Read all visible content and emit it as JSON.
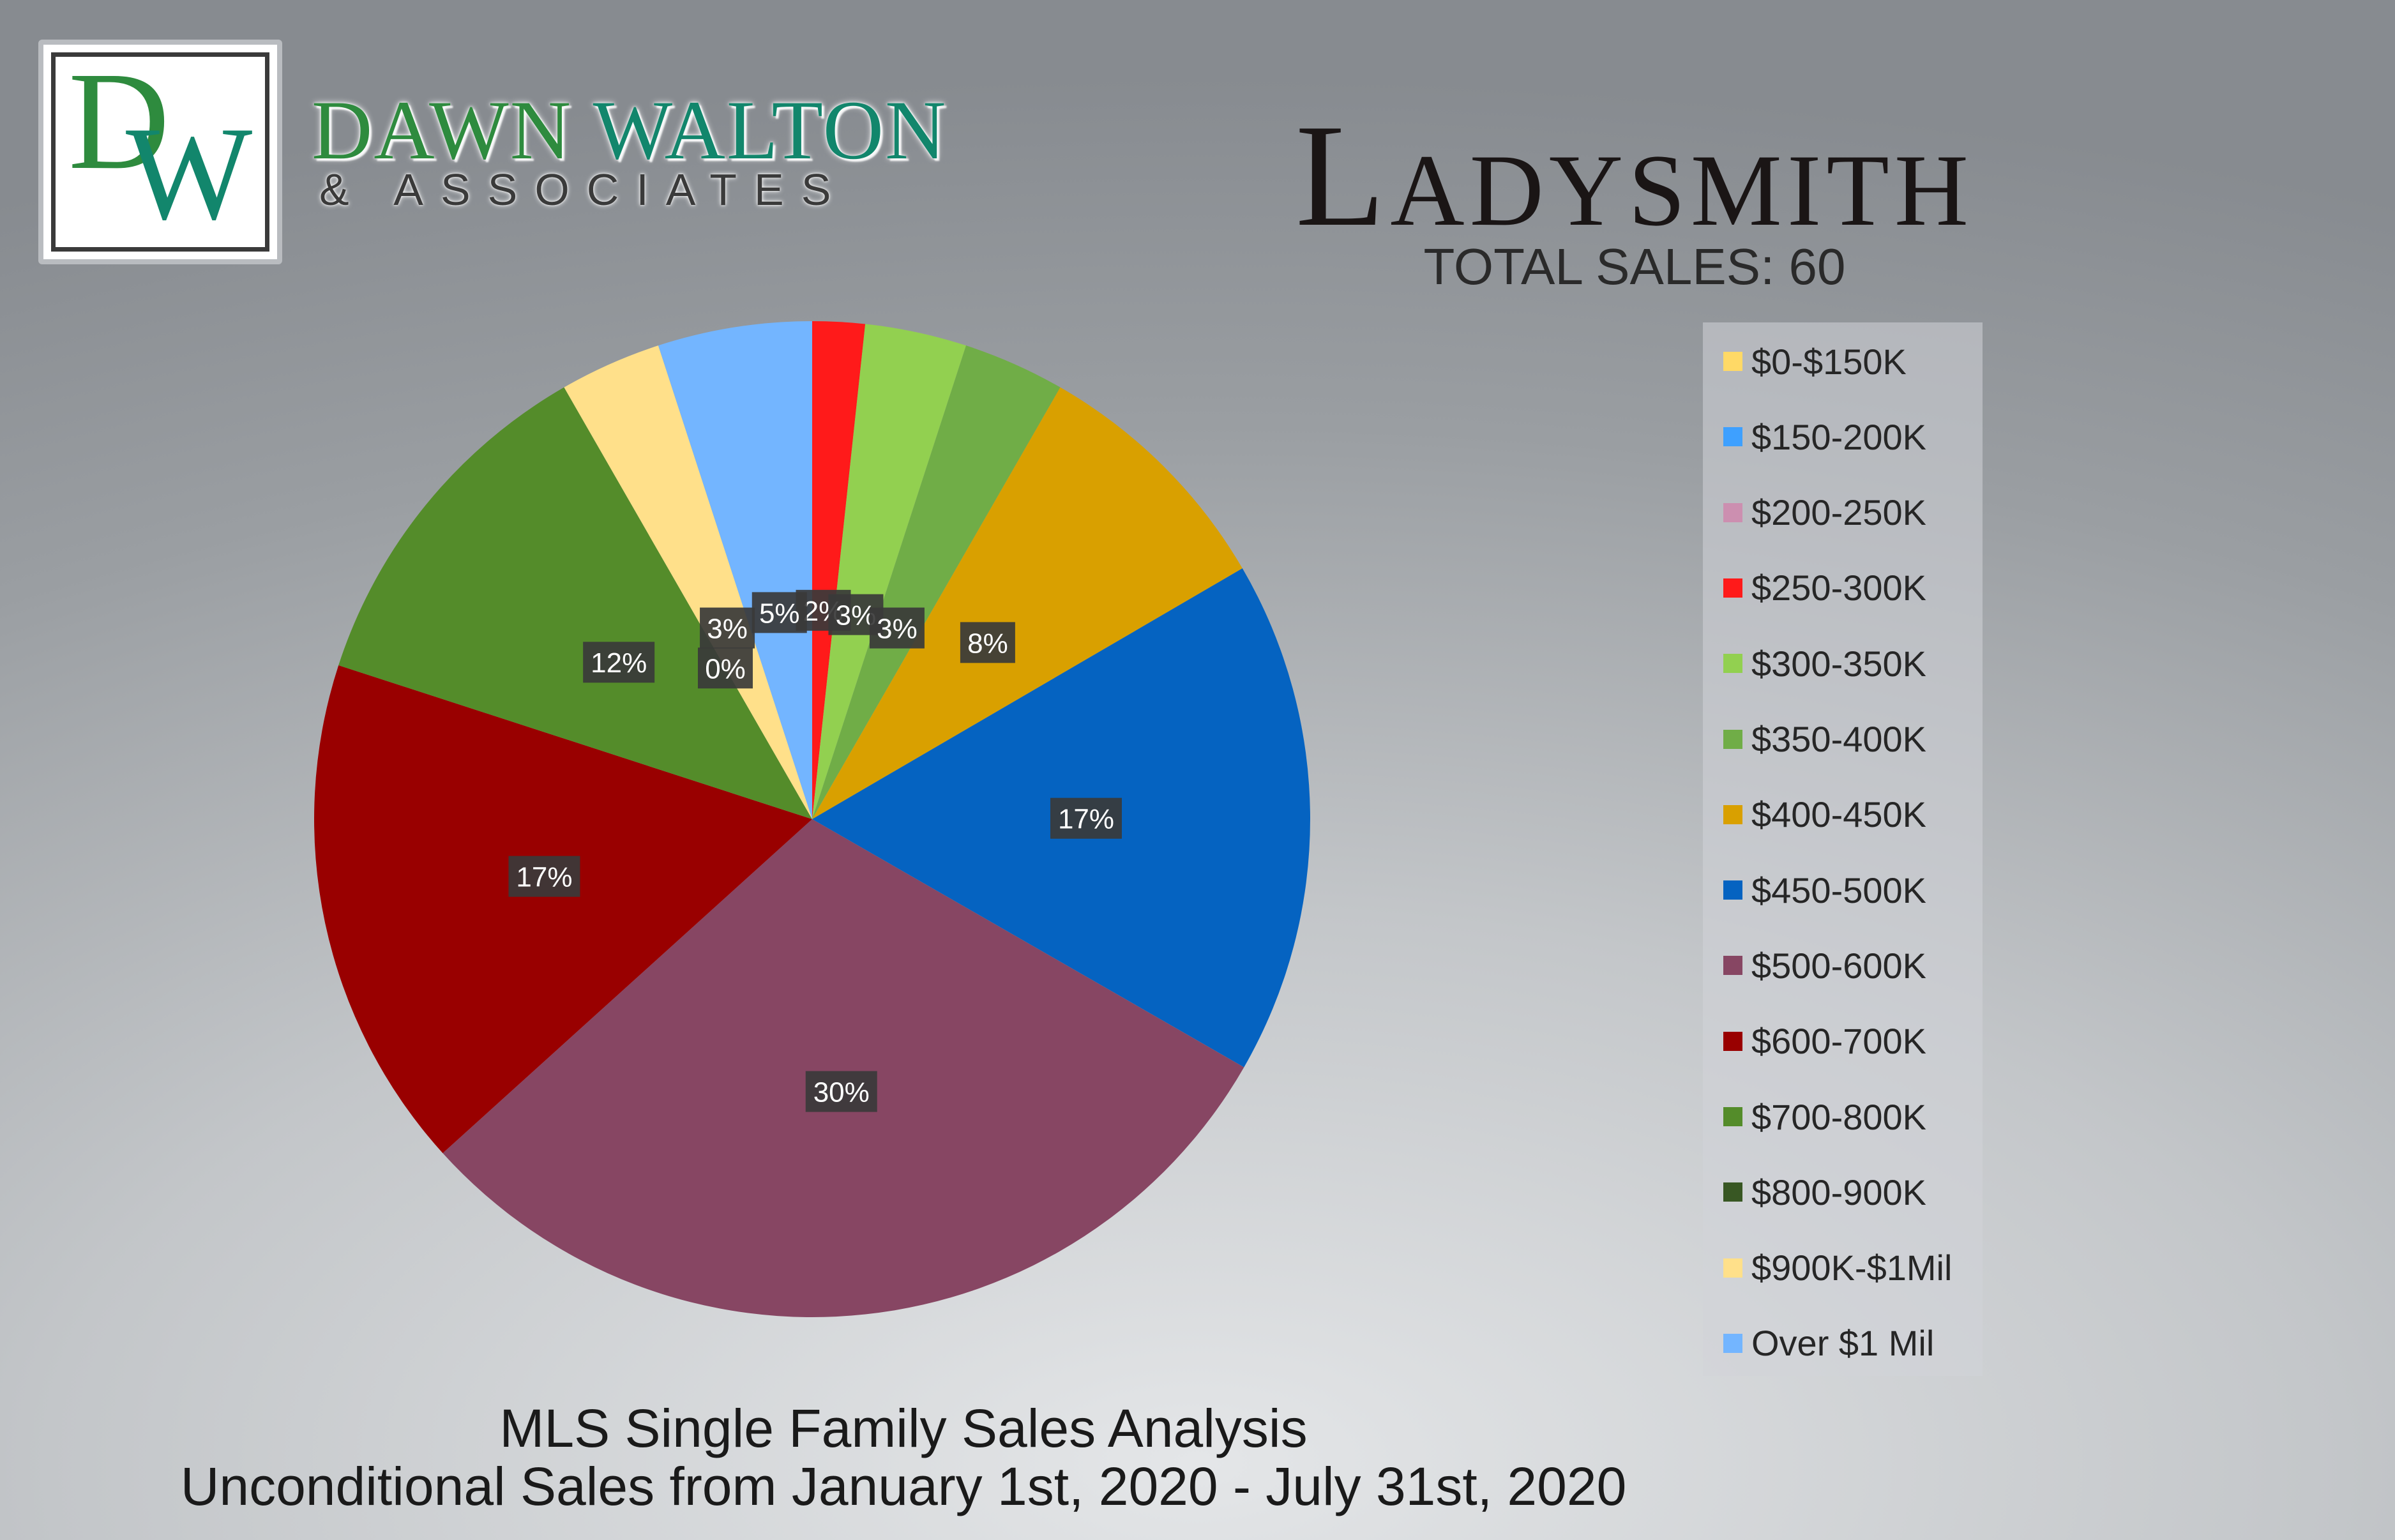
{
  "brand": {
    "logo_letters": "DW",
    "name_part1": "DAWN",
    "name_part2": "WALTON",
    "tagline": "& ASSOCIATES",
    "colors": {
      "green": "#2e8b3e",
      "teal": "#12866c"
    }
  },
  "header": {
    "title": "Ladysmith",
    "total_sales": "TOTAL SALES: 60"
  },
  "footer": {
    "line1": "MLS Single Family Sales Analysis",
    "line2": "Unconditional Sales from January 1st, 2020 - July 31st, 2020"
  },
  "chart_data": {
    "type": "pie",
    "title": "Ladysmith",
    "legend_position": "right",
    "categories": [
      "$0-$150K",
      "$150-200K",
      "$200-250K",
      "$250-300K",
      "$300-350K",
      "$350-400K",
      "$400-450K",
      "$450-500K",
      "$500-600K",
      "$600-700K",
      "$700-800K",
      "$800-900K",
      "$900K-$1Mil",
      "Over $1 Mil"
    ],
    "values": [
      0,
      0,
      0,
      1.7,
      3.3,
      3.3,
      8.3,
      16.7,
      30.0,
      16.7,
      11.7,
      0,
      3.3,
      5.0
    ],
    "data_labels": [
      "",
      "",
      "",
      "2%",
      "3%",
      "3%",
      "8%",
      "17%",
      "30%",
      "17%",
      "12%",
      "0%",
      "3%",
      "5%"
    ],
    "colors": [
      "#ffd966",
      "#3ea0ff",
      "#cc8fb0",
      "#ff1a1a",
      "#92d050",
      "#70ad47",
      "#d9a000",
      "#0563c1",
      "#874663",
      "#990000",
      "#548c2a",
      "#385723",
      "#ffe08a",
      "#73b5ff"
    ]
  }
}
